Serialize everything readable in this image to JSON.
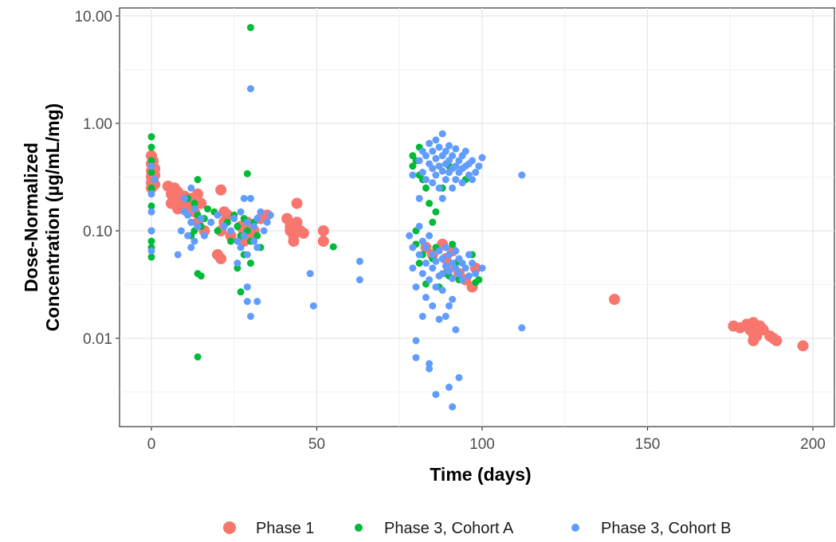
{
  "chart_data": {
    "type": "scatter",
    "title": "",
    "xlabel": "Time (days)",
    "ylabel_lines": [
      "Dose-Normalized",
      "Concentration (µg/mL/mg)"
    ],
    "y_scale": "log10",
    "xlim": [
      -10,
      205
    ],
    "ylim": [
      0.0019,
      11
    ],
    "grid": true,
    "legend_position": "bottom",
    "x_ticks": [
      {
        "value": 0,
        "label": "0"
      },
      {
        "value": 50,
        "label": "50"
      },
      {
        "value": 100,
        "label": "100"
      },
      {
        "value": 150,
        "label": "150"
      },
      {
        "value": 200,
        "label": "200"
      }
    ],
    "y_ticks": [
      {
        "value": 0.01,
        "label": "0.01"
      },
      {
        "value": 0.1,
        "label": "0.10"
      },
      {
        "value": 1,
        "label": "1.00"
      },
      {
        "value": 10,
        "label": "10.00"
      }
    ],
    "series": [
      {
        "name": "Phase 1",
        "color": "#F8766D",
        "marker": "large",
        "points": [
          [
            0,
            0.5
          ],
          [
            0,
            0.42
          ],
          [
            0,
            0.36
          ],
          [
            0,
            0.32
          ],
          [
            0,
            0.28
          ],
          [
            0,
            0.25
          ],
          [
            0.5,
            0.45
          ],
          [
            0.5,
            0.3
          ],
          [
            1,
            0.38
          ],
          [
            1,
            0.33
          ],
          [
            1,
            0.27
          ],
          [
            5,
            0.26
          ],
          [
            6,
            0.22
          ],
          [
            6,
            0.18
          ],
          [
            7,
            0.25
          ],
          [
            7,
            0.2
          ],
          [
            8,
            0.23
          ],
          [
            8,
            0.16
          ],
          [
            9,
            0.19
          ],
          [
            10,
            0.21
          ],
          [
            11,
            0.17
          ],
          [
            12,
            0.2
          ],
          [
            13,
            0.15
          ],
          [
            14,
            0.22
          ],
          [
            14,
            0.12
          ],
          [
            15,
            0.18
          ],
          [
            16,
            0.1
          ],
          [
            20,
            0.06
          ],
          [
            21,
            0.055
          ],
          [
            21,
            0.1
          ],
          [
            21,
            0.24
          ],
          [
            22,
            0.15
          ],
          [
            22,
            0.12
          ],
          [
            23,
            0.14
          ],
          [
            24,
            0.09
          ],
          [
            27,
            0.11
          ],
          [
            28,
            0.08
          ],
          [
            28,
            0.1
          ],
          [
            29,
            0.12
          ],
          [
            30,
            0.09
          ],
          [
            31,
            0.1
          ],
          [
            33,
            0.13
          ],
          [
            35,
            0.14
          ],
          [
            41,
            0.13
          ],
          [
            42,
            0.11
          ],
          [
            42,
            0.1
          ],
          [
            43,
            0.08
          ],
          [
            43,
            0.09
          ],
          [
            44,
            0.12
          ],
          [
            44,
            0.18
          ],
          [
            45,
            0.1
          ],
          [
            46,
            0.095
          ],
          [
            52,
            0.1
          ],
          [
            52,
            0.08
          ],
          [
            83,
            0.07
          ],
          [
            85,
            0.06
          ],
          [
            88,
            0.075
          ],
          [
            89,
            0.055
          ],
          [
            90,
            0.045
          ],
          [
            91,
            0.065
          ],
          [
            93,
            0.04
          ],
          [
            95,
            0.035
          ],
          [
            97,
            0.03
          ],
          [
            98,
            0.045
          ],
          [
            140,
            0.023
          ],
          [
            176,
            0.013
          ],
          [
            178,
            0.0125
          ],
          [
            180,
            0.0135
          ],
          [
            181,
            0.012
          ],
          [
            182,
            0.011
          ],
          [
            182,
            0.0095
          ],
          [
            182,
            0.014
          ],
          [
            183,
            0.0105
          ],
          [
            184,
            0.013
          ],
          [
            185,
            0.012
          ],
          [
            187,
            0.0105
          ],
          [
            188,
            0.01
          ],
          [
            189,
            0.0095
          ],
          [
            197,
            0.0085
          ]
        ]
      },
      {
        "name": "Phase 3, Cohort A",
        "color": "#00BA38",
        "marker": "small",
        "points": [
          [
            0,
            0.75
          ],
          [
            0,
            0.6
          ],
          [
            0,
            0.45
          ],
          [
            0,
            0.35
          ],
          [
            0,
            0.25
          ],
          [
            0,
            0.17
          ],
          [
            0,
            0.1
          ],
          [
            0,
            0.08
          ],
          [
            0,
            0.07
          ],
          [
            0,
            0.057
          ],
          [
            10,
            0.15
          ],
          [
            11,
            0.2
          ],
          [
            12,
            0.12
          ],
          [
            12,
            0.09
          ],
          [
            13,
            0.1
          ],
          [
            13,
            0.18
          ],
          [
            14,
            0.3
          ],
          [
            14,
            0.14
          ],
          [
            14,
            0.04
          ],
          [
            14,
            0.0067
          ],
          [
            15,
            0.11
          ],
          [
            15,
            0.038
          ],
          [
            16,
            0.13
          ],
          [
            17,
            0.16
          ],
          [
            18,
            0.12
          ],
          [
            19,
            0.15
          ],
          [
            20,
            0.1
          ],
          [
            23,
            0.12
          ],
          [
            24,
            0.08
          ],
          [
            25,
            0.14
          ],
          [
            26,
            0.11
          ],
          [
            26,
            0.045
          ],
          [
            27,
            0.09
          ],
          [
            27,
            0.027
          ],
          [
            28,
            0.13
          ],
          [
            28,
            0.06
          ],
          [
            29,
            0.34
          ],
          [
            29,
            0.1
          ],
          [
            30,
            7.8
          ],
          [
            30,
            0.08
          ],
          [
            30,
            0.05
          ],
          [
            31,
            0.12
          ],
          [
            32,
            0.09
          ],
          [
            33,
            0.07
          ],
          [
            55,
            0.071
          ],
          [
            79,
            0.5
          ],
          [
            79,
            0.4
          ],
          [
            80,
            0.45
          ],
          [
            80,
            0.1
          ],
          [
            80,
            0.075
          ],
          [
            81,
            0.6
          ],
          [
            81,
            0.33
          ],
          [
            81,
            0.05
          ],
          [
            82,
            0.3
          ],
          [
            82,
            0.06
          ],
          [
            83,
            0.25
          ],
          [
            83,
            0.032
          ],
          [
            84,
            0.18
          ],
          [
            85,
            0.055
          ],
          [
            85,
            0.12
          ],
          [
            86,
            0.07
          ],
          [
            86,
            0.15
          ],
          [
            87,
            0.03
          ],
          [
            88,
            0.25
          ],
          [
            89,
            0.04
          ],
          [
            90,
            0.4
          ],
          [
            90,
            0.038
          ],
          [
            91,
            0.075
          ],
          [
            92,
            0.05
          ],
          [
            93,
            0.035
          ],
          [
            95,
            0.3
          ],
          [
            97,
            0.06
          ],
          [
            98,
            0.033
          ],
          [
            99,
            0.035
          ]
        ]
      },
      {
        "name": "Phase 3, Cohort B",
        "color": "#619CFF",
        "marker": "small",
        "points": [
          [
            0,
            0.4
          ],
          [
            0,
            0.22
          ],
          [
            0,
            0.15
          ],
          [
            0,
            0.065
          ],
          [
            0,
            0.1
          ],
          [
            1,
            0.3
          ],
          [
            8,
            0.06
          ],
          [
            9,
            0.1
          ],
          [
            10,
            0.2
          ],
          [
            10,
            0.15
          ],
          [
            11,
            0.09
          ],
          [
            11,
            0.14
          ],
          [
            12,
            0.12
          ],
          [
            12,
            0.07
          ],
          [
            12,
            0.25
          ],
          [
            13,
            0.16
          ],
          [
            13,
            0.08
          ],
          [
            14,
            0.11
          ],
          [
            15,
            0.13
          ],
          [
            16,
            0.09
          ],
          [
            18,
            0.12
          ],
          [
            20,
            0.14
          ],
          [
            22,
            0.11
          ],
          [
            24,
            0.1
          ],
          [
            25,
            0.13
          ],
          [
            26,
            0.08
          ],
          [
            26,
            0.05
          ],
          [
            27,
            0.07
          ],
          [
            27,
            0.15
          ],
          [
            28,
            0.09
          ],
          [
            28,
            0.2
          ],
          [
            29,
            0.06
          ],
          [
            29,
            0.12
          ],
          [
            29,
            0.03
          ],
          [
            29,
            0.022
          ],
          [
            30,
            0.016
          ],
          [
            30,
            0.2
          ],
          [
            30,
            2.1
          ],
          [
            31,
            0.08
          ],
          [
            31,
            0.11
          ],
          [
            32,
            0.07
          ],
          [
            32,
            0.13
          ],
          [
            32,
            0.022
          ],
          [
            33,
            0.15
          ],
          [
            34,
            0.1
          ],
          [
            35,
            0.12
          ],
          [
            36,
            0.14
          ],
          [
            48,
            0.04
          ],
          [
            49,
            0.02
          ],
          [
            63,
            0.052
          ],
          [
            63,
            0.035
          ],
          [
            78,
            0.09
          ],
          [
            79,
            0.33
          ],
          [
            79,
            0.07
          ],
          [
            79,
            0.045
          ],
          [
            80,
            0.03
          ],
          [
            80,
            0.0095
          ],
          [
            80,
            0.0066
          ],
          [
            81,
            0.45
          ],
          [
            81,
            0.2
          ],
          [
            81,
            0.11
          ],
          [
            81,
            0.06
          ],
          [
            82,
            0.35
          ],
          [
            82,
            0.55
          ],
          [
            82,
            0.08
          ],
          [
            82,
            0.04
          ],
          [
            82,
            0.016
          ],
          [
            83,
            0.5
          ],
          [
            83,
            0.3
          ],
          [
            83,
            0.07
          ],
          [
            83,
            0.05
          ],
          [
            83,
            0.024
          ],
          [
            84,
            0.65
          ],
          [
            84,
            0.42
          ],
          [
            84,
            0.09
          ],
          [
            84,
            0.035
          ],
          [
            84,
            0.0058
          ],
          [
            84,
            0.0052
          ],
          [
            85,
            0.55
          ],
          [
            85,
            0.38
          ],
          [
            85,
            0.28
          ],
          [
            85,
            0.06
          ],
          [
            85,
            0.045
          ],
          [
            85,
            0.02
          ],
          [
            86,
            0.7
          ],
          [
            86,
            0.47
          ],
          [
            86,
            0.33
          ],
          [
            86,
            0.052
          ],
          [
            86,
            0.03
          ],
          [
            86,
            0.003
          ],
          [
            87,
            0.6
          ],
          [
            87,
            0.4
          ],
          [
            87,
            0.25
          ],
          [
            87,
            0.065
          ],
          [
            87,
            0.038
          ],
          [
            87,
            0.015
          ],
          [
            88,
            0.8
          ],
          [
            88,
            0.5
          ],
          [
            88,
            0.36
          ],
          [
            88,
            0.2
          ],
          [
            88,
            0.055
          ],
          [
            88,
            0.04
          ],
          [
            88,
            0.028
          ],
          [
            89,
            0.55
          ],
          [
            89,
            0.42
          ],
          [
            89,
            0.3
          ],
          [
            89,
            0.07
          ],
          [
            89,
            0.047
          ],
          [
            89,
            0.016
          ],
          [
            90,
            0.62
          ],
          [
            90,
            0.45
          ],
          [
            90,
            0.35
          ],
          [
            90,
            0.06
          ],
          [
            90,
            0.042
          ],
          [
            90,
            0.02
          ],
          [
            90,
            0.0035
          ],
          [
            91,
            0.5
          ],
          [
            91,
            0.38
          ],
          [
            91,
            0.25
          ],
          [
            91,
            0.05
          ],
          [
            91,
            0.036
          ],
          [
            91,
            0.023
          ],
          [
            91,
            0.0023
          ],
          [
            92,
            0.58
          ],
          [
            92,
            0.4
          ],
          [
            92,
            0.3
          ],
          [
            92,
            0.065
          ],
          [
            92,
            0.045
          ],
          [
            92,
            0.012
          ],
          [
            93,
            0.45
          ],
          [
            93,
            0.35
          ],
          [
            93,
            0.055
          ],
          [
            93,
            0.04
          ],
          [
            93,
            0.0043
          ],
          [
            94,
            0.5
          ],
          [
            94,
            0.38
          ],
          [
            94,
            0.28
          ],
          [
            94,
            0.05
          ],
          [
            94,
            0.035
          ],
          [
            95,
            0.55
          ],
          [
            95,
            0.4
          ],
          [
            95,
            0.045
          ],
          [
            96,
            0.42
          ],
          [
            96,
            0.33
          ],
          [
            96,
            0.06
          ],
          [
            96,
            0.038
          ],
          [
            97,
            0.45
          ],
          [
            97,
            0.3
          ],
          [
            97,
            0.05
          ],
          [
            98,
            0.35
          ],
          [
            98,
            0.04
          ],
          [
            99,
            0.4
          ],
          [
            100,
            0.48
          ],
          [
            100,
            0.045
          ],
          [
            112,
            0.33
          ],
          [
            112,
            0.0125
          ]
        ]
      }
    ]
  }
}
